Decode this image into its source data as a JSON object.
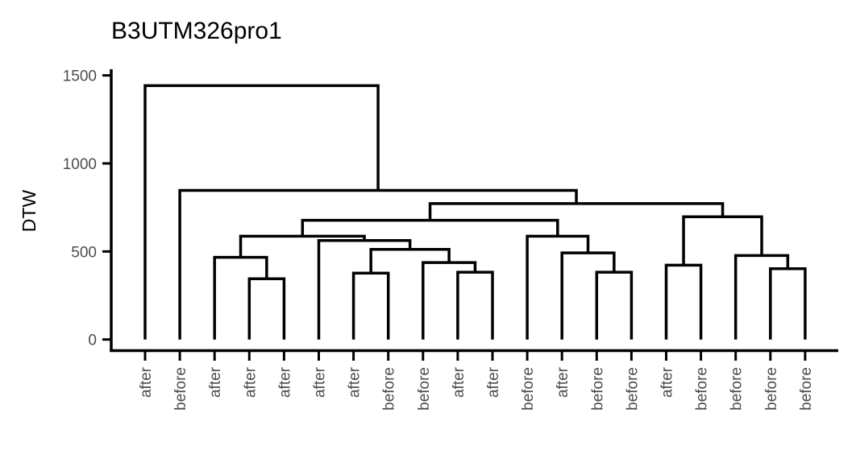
{
  "chart_data": {
    "type": "dendrogram",
    "title": "B3UTM326pro1",
    "xlabel": "",
    "ylabel": "DTW",
    "ylim": [
      -70,
      1535
    ],
    "yticks": [
      0,
      500,
      1000,
      1500
    ],
    "grid": false,
    "legend": "none",
    "leaves": [
      "after",
      "before",
      "after",
      "after",
      "after",
      "after",
      "after",
      "before",
      "before",
      "after",
      "after",
      "before",
      "after",
      "before",
      "before",
      "after",
      "before",
      "before",
      "before",
      "before"
    ],
    "merges": [
      {
        "left": 4,
        "right": 5,
        "height": 345
      },
      {
        "left": 7,
        "right": 8,
        "height": 377
      },
      {
        "left": 10,
        "right": 11,
        "height": 382
      },
      {
        "left": 14,
        "right": 15,
        "height": 382
      },
      {
        "left": 19,
        "right": 20,
        "height": 402
      },
      {
        "left": 16,
        "right": 17,
        "height": 422
      },
      {
        "left": 9,
        "right": 10.5,
        "height": 437
      },
      {
        "left": 3,
        "right": 4.5,
        "height": 467
      },
      {
        "left": 18,
        "right": 19.5,
        "height": 477
      },
      {
        "left": 13,
        "right": 14.5,
        "height": 492
      },
      {
        "left": 7.5,
        "right": 9.75,
        "height": 512
      },
      {
        "left": 6,
        "right": 8.625,
        "height": 562
      },
      {
        "left": 3.75,
        "right": 7.3125,
        "height": 587
      },
      {
        "left": 12,
        "right": 13.75,
        "height": 587
      },
      {
        "left": 5.53125,
        "right": 12.875,
        "height": 677
      },
      {
        "left": 16.5,
        "right": 18.75,
        "height": 697
      },
      {
        "left": 9.203125,
        "right": 17.625,
        "height": 772
      },
      {
        "left": 2,
        "right": 13.4140625,
        "height": 847
      },
      {
        "left": 1,
        "right": 7.70703125,
        "height": 1442
      }
    ]
  }
}
